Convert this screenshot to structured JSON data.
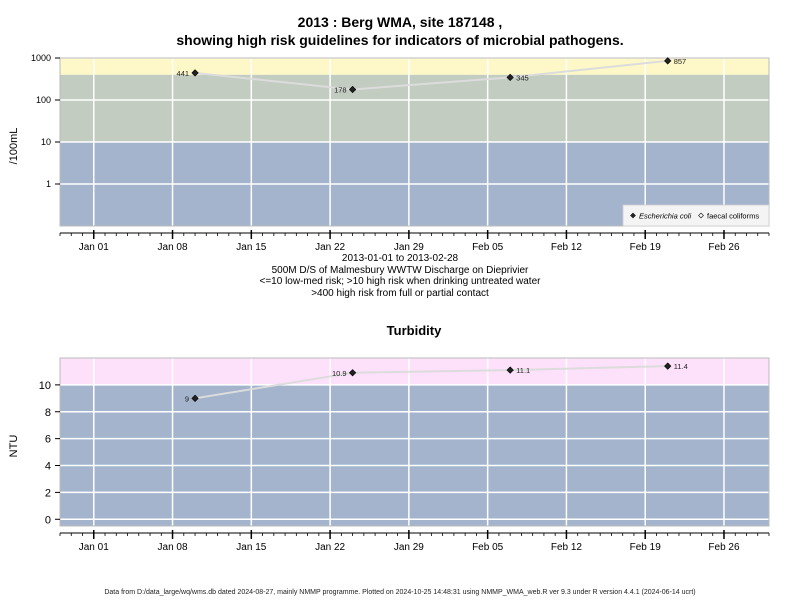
{
  "page": {
    "title_line1": "2013 : Berg WMA, site 187148 ,",
    "title_line2": "showing high risk guidelines for indicators of microbial pathogens.",
    "info_lines": [
      "2013-01-01 to 2013-02-28",
      "500M D/S of Malmesbury WWTW Discharge on Dieprivier",
      "<=10 low-med risk; >10 high risk when drinking untreated water",
      ">400 high risk from full or partial contact"
    ],
    "footer": "Data from D:/data_large/wq/wms.db dated 2024-08-27, mainly NMMP programme. Plotted on 2024-10-25 14:48:31 using NMMP_WMA_web.R ver 9.3 under R version 4.4.1 (2024-06-14 ucrt)"
  },
  "colors": {
    "band_low": "#a3b4cc",
    "band_mid": "#c2ccc0",
    "band_high": "#fef7c8",
    "band_turbidity_high": "#fde1fa",
    "grid": "#ffffff",
    "series_line": "#dcdcdc",
    "point": "#222222"
  },
  "chart_data": [
    {
      "type": "line",
      "title": "",
      "ylabel": "/100mL",
      "xlabel": "",
      "y_scale": "log",
      "ylim": [
        0.1,
        1000
      ],
      "y_ticks": [
        1,
        10,
        100,
        1000
      ],
      "y_tick_labels": [
        "1",
        "10",
        "100",
        "1000"
      ],
      "xlim": [
        "2012-12-29",
        "2013-03-02"
      ],
      "x_ticks": [
        "2013-01-01",
        "2013-01-08",
        "2013-01-15",
        "2013-01-22",
        "2013-01-29",
        "2013-02-05",
        "2013-02-12",
        "2013-02-19",
        "2013-02-26"
      ],
      "x_tick_labels": [
        "Jan 01",
        "Jan 08",
        "Jan 15",
        "Jan 22",
        "Jan 29",
        "Feb 05",
        "Feb 12",
        "Feb 19",
        "Feb 26"
      ],
      "bands": [
        {
          "from": 0.1,
          "to": 10,
          "color_key": "band_low"
        },
        {
          "from": 10,
          "to": 400,
          "color_key": "band_mid"
        },
        {
          "from": 400,
          "to": 1000,
          "color_key": "band_high"
        }
      ],
      "grid": true,
      "legend_position": "bottom-right",
      "legend": [
        {
          "label": "Escherichia coli",
          "marker": "filled-diamond",
          "italic": true
        },
        {
          "label": "faecal coliforms",
          "marker": "open-diamond",
          "italic": false
        }
      ],
      "series": [
        {
          "name": "Escherichia coli",
          "x": [
            "2013-01-10",
            "2013-01-24",
            "2013-02-07",
            "2013-02-21"
          ],
          "values": [
            441,
            178,
            345,
            857
          ],
          "labels": [
            "441",
            "178",
            "345",
            "857"
          ],
          "label_sides": [
            "left",
            "left",
            "right",
            "right"
          ]
        }
      ]
    },
    {
      "type": "line",
      "title": "Turbidity",
      "ylabel": "NTU",
      "xlabel": "",
      "y_scale": "linear",
      "ylim": [
        -0.5,
        12
      ],
      "y_ticks": [
        0,
        2,
        4,
        6,
        8,
        10
      ],
      "y_tick_labels": [
        "0",
        "2",
        "4",
        "6",
        "8",
        "10"
      ],
      "xlim": [
        "2012-12-29",
        "2013-03-02"
      ],
      "x_ticks": [
        "2013-01-01",
        "2013-01-08",
        "2013-01-15",
        "2013-01-22",
        "2013-01-29",
        "2013-02-05",
        "2013-02-12",
        "2013-02-19",
        "2013-02-26"
      ],
      "x_tick_labels": [
        "Jan 01",
        "Jan 08",
        "Jan 15",
        "Jan 22",
        "Jan 29",
        "Feb 05",
        "Feb 12",
        "Feb 19",
        "Feb 26"
      ],
      "bands": [
        {
          "from": -0.5,
          "to": 10,
          "color_key": "band_low"
        },
        {
          "from": 10,
          "to": 12,
          "color_key": "band_turbidity_high"
        }
      ],
      "grid": true,
      "series": [
        {
          "name": "",
          "x": [
            "2013-01-10",
            "2013-01-24",
            "2013-02-07",
            "2013-02-21"
          ],
          "values": [
            9,
            10.9,
            11.1,
            11.4
          ],
          "labels": [
            "9",
            "10.9",
            "11.1",
            "11.4"
          ],
          "label_sides": [
            "left",
            "left",
            "right",
            "right"
          ]
        }
      ]
    }
  ]
}
